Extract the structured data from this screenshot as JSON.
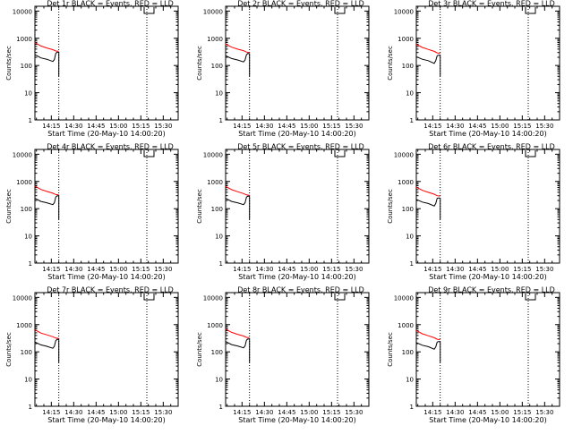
{
  "colors": {
    "background": "#ffffff",
    "axes": "#000000",
    "events": "#000000",
    "lld": "#ff0000"
  },
  "chart_data": [
    {
      "type": "line",
      "title": "Det 1r BLACK = Events, RED = LLD",
      "xlabel": "Start Time (20-May-10 14:00:20)",
      "ylabel": "Counts/sec",
      "y_scale": "log",
      "ylim": [
        1,
        15000
      ],
      "yticks": [
        "1",
        "10",
        "100",
        "1000",
        "10000"
      ],
      "xlim": [
        "14:04",
        "15:40"
      ],
      "xticks": [
        "14:15",
        "14:30",
        "14:45",
        "15:00",
        "15:15",
        "15:30"
      ],
      "vlines": [
        "14:20",
        "15:19"
      ],
      "series": [
        {
          "name": "Events",
          "color": "#000000",
          "x": [
            "14:04",
            "14:08",
            "14:12",
            "14:16",
            "14:17",
            "14:18",
            "14:19",
            "14:20",
            "14:20"
          ],
          "y": [
            250,
            190,
            170,
            140,
            165,
            280,
            310,
            300,
            40
          ]
        },
        {
          "name": "LLD",
          "color": "#ff0000",
          "x": [
            "14:04",
            "14:08",
            "14:12",
            "14:16",
            "14:18",
            "14:20"
          ],
          "y": [
            700,
            520,
            440,
            380,
            340,
            330
          ]
        }
      ]
    },
    {
      "type": "line",
      "title": "Det 2r BLACK = Events, RED = LLD",
      "xlabel": "Start Time (20-May-10 14:00:20)",
      "ylabel": "Counts/sec",
      "y_scale": "log",
      "ylim": [
        1,
        15000
      ],
      "yticks": [
        "1",
        "10",
        "100",
        "1000",
        "10000"
      ],
      "xlim": [
        "14:04",
        "15:40"
      ],
      "xticks": [
        "14:15",
        "14:30",
        "14:45",
        "15:00",
        "15:15",
        "15:30"
      ],
      "vlines": [
        "14:20",
        "15:19"
      ],
      "series": [
        {
          "name": "Events",
          "color": "#000000",
          "x": [
            "14:04",
            "14:08",
            "14:12",
            "14:16",
            "14:17",
            "14:18",
            "14:19",
            "14:20",
            "14:20"
          ],
          "y": [
            230,
            180,
            160,
            135,
            160,
            250,
            280,
            270,
            40
          ]
        },
        {
          "name": "LLD",
          "color": "#ff0000",
          "x": [
            "14:04",
            "14:08",
            "14:12",
            "14:16",
            "14:18",
            "14:20"
          ],
          "y": [
            620,
            470,
            400,
            350,
            310,
            300
          ]
        }
      ]
    },
    {
      "type": "line",
      "title": "Det 3r BLACK = Events, RED = LLD",
      "xlabel": "Start Time (20-May-10 14:00:20)",
      "ylabel": "Counts/sec",
      "y_scale": "log",
      "ylim": [
        1,
        15000
      ],
      "yticks": [
        "1",
        "10",
        "100",
        "1000",
        "10000"
      ],
      "xlim": [
        "14:04",
        "15:40"
      ],
      "xticks": [
        "14:15",
        "14:30",
        "14:45",
        "15:00",
        "15:15",
        "15:30"
      ],
      "vlines": [
        "14:20",
        "15:19"
      ],
      "series": [
        {
          "name": "Events",
          "color": "#000000",
          "x": [
            "14:04",
            "14:08",
            "14:12",
            "14:16",
            "14:17",
            "14:18",
            "14:19",
            "14:20",
            "14:20"
          ],
          "y": [
            210,
            170,
            150,
            120,
            150,
            230,
            240,
            230,
            40
          ]
        },
        {
          "name": "LLD",
          "color": "#ff0000",
          "x": [
            "14:04",
            "14:08",
            "14:12",
            "14:16",
            "14:18",
            "14:20"
          ],
          "y": [
            600,
            460,
            390,
            330,
            290,
            280
          ]
        }
      ]
    },
    {
      "type": "line",
      "title": "Det 4r BLACK = Events, RED = LLD",
      "xlabel": "Start Time (20-May-10 14:00:20)",
      "ylabel": "Counts/sec",
      "y_scale": "log",
      "ylim": [
        1,
        15000
      ],
      "yticks": [
        "1",
        "10",
        "100",
        "1000",
        "10000"
      ],
      "xlim": [
        "14:04",
        "15:40"
      ],
      "xticks": [
        "14:15",
        "14:30",
        "14:45",
        "15:00",
        "15:15",
        "15:30"
      ],
      "vlines": [
        "14:20",
        "15:19"
      ],
      "series": [
        {
          "name": "Events",
          "color": "#000000",
          "x": [
            "14:04",
            "14:08",
            "14:12",
            "14:16",
            "14:17",
            "14:18",
            "14:19",
            "14:20",
            "14:20"
          ],
          "y": [
            240,
            185,
            165,
            140,
            165,
            270,
            300,
            290,
            40
          ]
        },
        {
          "name": "LLD",
          "color": "#ff0000",
          "x": [
            "14:04",
            "14:08",
            "14:12",
            "14:16",
            "14:18",
            "14:20"
          ],
          "y": [
            680,
            510,
            430,
            370,
            330,
            320
          ]
        }
      ]
    },
    {
      "type": "line",
      "title": "Det 5r BLACK = Events, RED = LLD",
      "xlabel": "Start Time (20-May-10 14:00:20)",
      "ylabel": "Counts/sec",
      "y_scale": "log",
      "ylim": [
        1,
        15000
      ],
      "yticks": [
        "1",
        "10",
        "100",
        "1000",
        "10000"
      ],
      "xlim": [
        "14:04",
        "15:40"
      ],
      "xticks": [
        "14:15",
        "14:30",
        "14:45",
        "15:00",
        "15:15",
        "15:30"
      ],
      "vlines": [
        "14:20",
        "15:19"
      ],
      "series": [
        {
          "name": "Events",
          "color": "#000000",
          "x": [
            "14:04",
            "14:08",
            "14:12",
            "14:16",
            "14:17",
            "14:18",
            "14:19",
            "14:20",
            "14:20"
          ],
          "y": [
            240,
            185,
            165,
            140,
            165,
            265,
            290,
            280,
            40
          ]
        },
        {
          "name": "LLD",
          "color": "#ff0000",
          "x": [
            "14:04",
            "14:08",
            "14:12",
            "14:16",
            "14:18",
            "14:20"
          ],
          "y": [
            660,
            500,
            420,
            360,
            320,
            310
          ]
        }
      ]
    },
    {
      "type": "line",
      "title": "Det 6r BLACK = Events, RED = LLD",
      "xlabel": "Start Time (20-May-10 14:00:20)",
      "ylabel": "Counts/sec",
      "y_scale": "log",
      "ylim": [
        1,
        15000
      ],
      "yticks": [
        "1",
        "10",
        "100",
        "1000",
        "10000"
      ],
      "xlim": [
        "14:04",
        "15:40"
      ],
      "xticks": [
        "14:15",
        "14:30",
        "14:45",
        "15:00",
        "15:15",
        "15:30"
      ],
      "vlines": [
        "14:20",
        "15:19"
      ],
      "series": [
        {
          "name": "Events",
          "color": "#000000",
          "x": [
            "14:04",
            "14:08",
            "14:12",
            "14:16",
            "14:17",
            "14:18",
            "14:19",
            "14:20",
            "14:20"
          ],
          "y": [
            220,
            175,
            155,
            125,
            155,
            240,
            250,
            240,
            40
          ]
        },
        {
          "name": "LLD",
          "color": "#ff0000",
          "x": [
            "14:04",
            "14:08",
            "14:12",
            "14:16",
            "14:18",
            "14:20"
          ],
          "y": [
            620,
            470,
            400,
            340,
            300,
            290
          ]
        }
      ]
    },
    {
      "type": "line",
      "title": "Det 7r BLACK = Events, RED = LLD",
      "xlabel": "Start Time (20-May-10 14:00:20)",
      "ylabel": "Counts/sec",
      "y_scale": "log",
      "ylim": [
        1,
        15000
      ],
      "yticks": [
        "1",
        "10",
        "100",
        "1000",
        "10000"
      ],
      "xlim": [
        "14:04",
        "15:40"
      ],
      "xticks": [
        "14:15",
        "14:30",
        "14:45",
        "15:00",
        "15:15",
        "15:30"
      ],
      "vlines": [
        "14:20",
        "15:19"
      ],
      "series": [
        {
          "name": "Events",
          "color": "#000000",
          "x": [
            "14:04",
            "14:08",
            "14:12",
            "14:16",
            "14:17",
            "14:18",
            "14:19",
            "14:20",
            "14:20"
          ],
          "y": [
            230,
            180,
            160,
            135,
            160,
            260,
            290,
            280,
            40
          ]
        },
        {
          "name": "LLD",
          "color": "#ff0000",
          "x": [
            "14:04",
            "14:08",
            "14:12",
            "14:16",
            "14:18",
            "14:20"
          ],
          "y": [
            650,
            490,
            420,
            360,
            320,
            310
          ]
        }
      ]
    },
    {
      "type": "line",
      "title": "Det 8r BLACK = Events, RED = LLD",
      "xlabel": "Start Time (20-May-10 14:00:20)",
      "ylabel": "Counts/sec",
      "y_scale": "log",
      "ylim": [
        1,
        15000
      ],
      "yticks": [
        "1",
        "10",
        "100",
        "1000",
        "10000"
      ],
      "xlim": [
        "14:04",
        "15:40"
      ],
      "xticks": [
        "14:15",
        "14:30",
        "14:45",
        "15:00",
        "15:15",
        "15:30"
      ],
      "vlines": [
        "14:20",
        "15:19"
      ],
      "series": [
        {
          "name": "Events",
          "color": "#000000",
          "x": [
            "14:04",
            "14:08",
            "14:12",
            "14:16",
            "14:17",
            "14:18",
            "14:19",
            "14:20",
            "14:20"
          ],
          "y": [
            240,
            185,
            165,
            140,
            165,
            270,
            300,
            290,
            40
          ]
        },
        {
          "name": "LLD",
          "color": "#ff0000",
          "x": [
            "14:04",
            "14:08",
            "14:12",
            "14:16",
            "14:18",
            "14:20"
          ],
          "y": [
            690,
            520,
            440,
            380,
            340,
            330
          ]
        }
      ]
    },
    {
      "type": "line",
      "title": "Det 9r BLACK = Events, RED = LLD",
      "xlabel": "Start Time (20-May-10 14:00:20)",
      "ylabel": "Counts/sec",
      "y_scale": "log",
      "ylim": [
        1,
        15000
      ],
      "yticks": [
        "1",
        "10",
        "100",
        "1000",
        "10000"
      ],
      "xlim": [
        "14:04",
        "15:40"
      ],
      "xticks": [
        "14:15",
        "14:30",
        "14:45",
        "15:00",
        "15:15",
        "15:30"
      ],
      "vlines": [
        "14:20",
        "15:19"
      ],
      "series": [
        {
          "name": "Events",
          "color": "#000000",
          "x": [
            "14:04",
            "14:08",
            "14:12",
            "14:16",
            "14:17",
            "14:18",
            "14:19",
            "14:20",
            "14:20"
          ],
          "y": [
            220,
            175,
            155,
            125,
            150,
            230,
            240,
            230,
            40
          ]
        },
        {
          "name": "LLD",
          "color": "#ff0000",
          "x": [
            "14:04",
            "14:08",
            "14:12",
            "14:16",
            "14:18",
            "14:20"
          ],
          "y": [
            610,
            460,
            390,
            330,
            290,
            280
          ]
        }
      ]
    }
  ]
}
